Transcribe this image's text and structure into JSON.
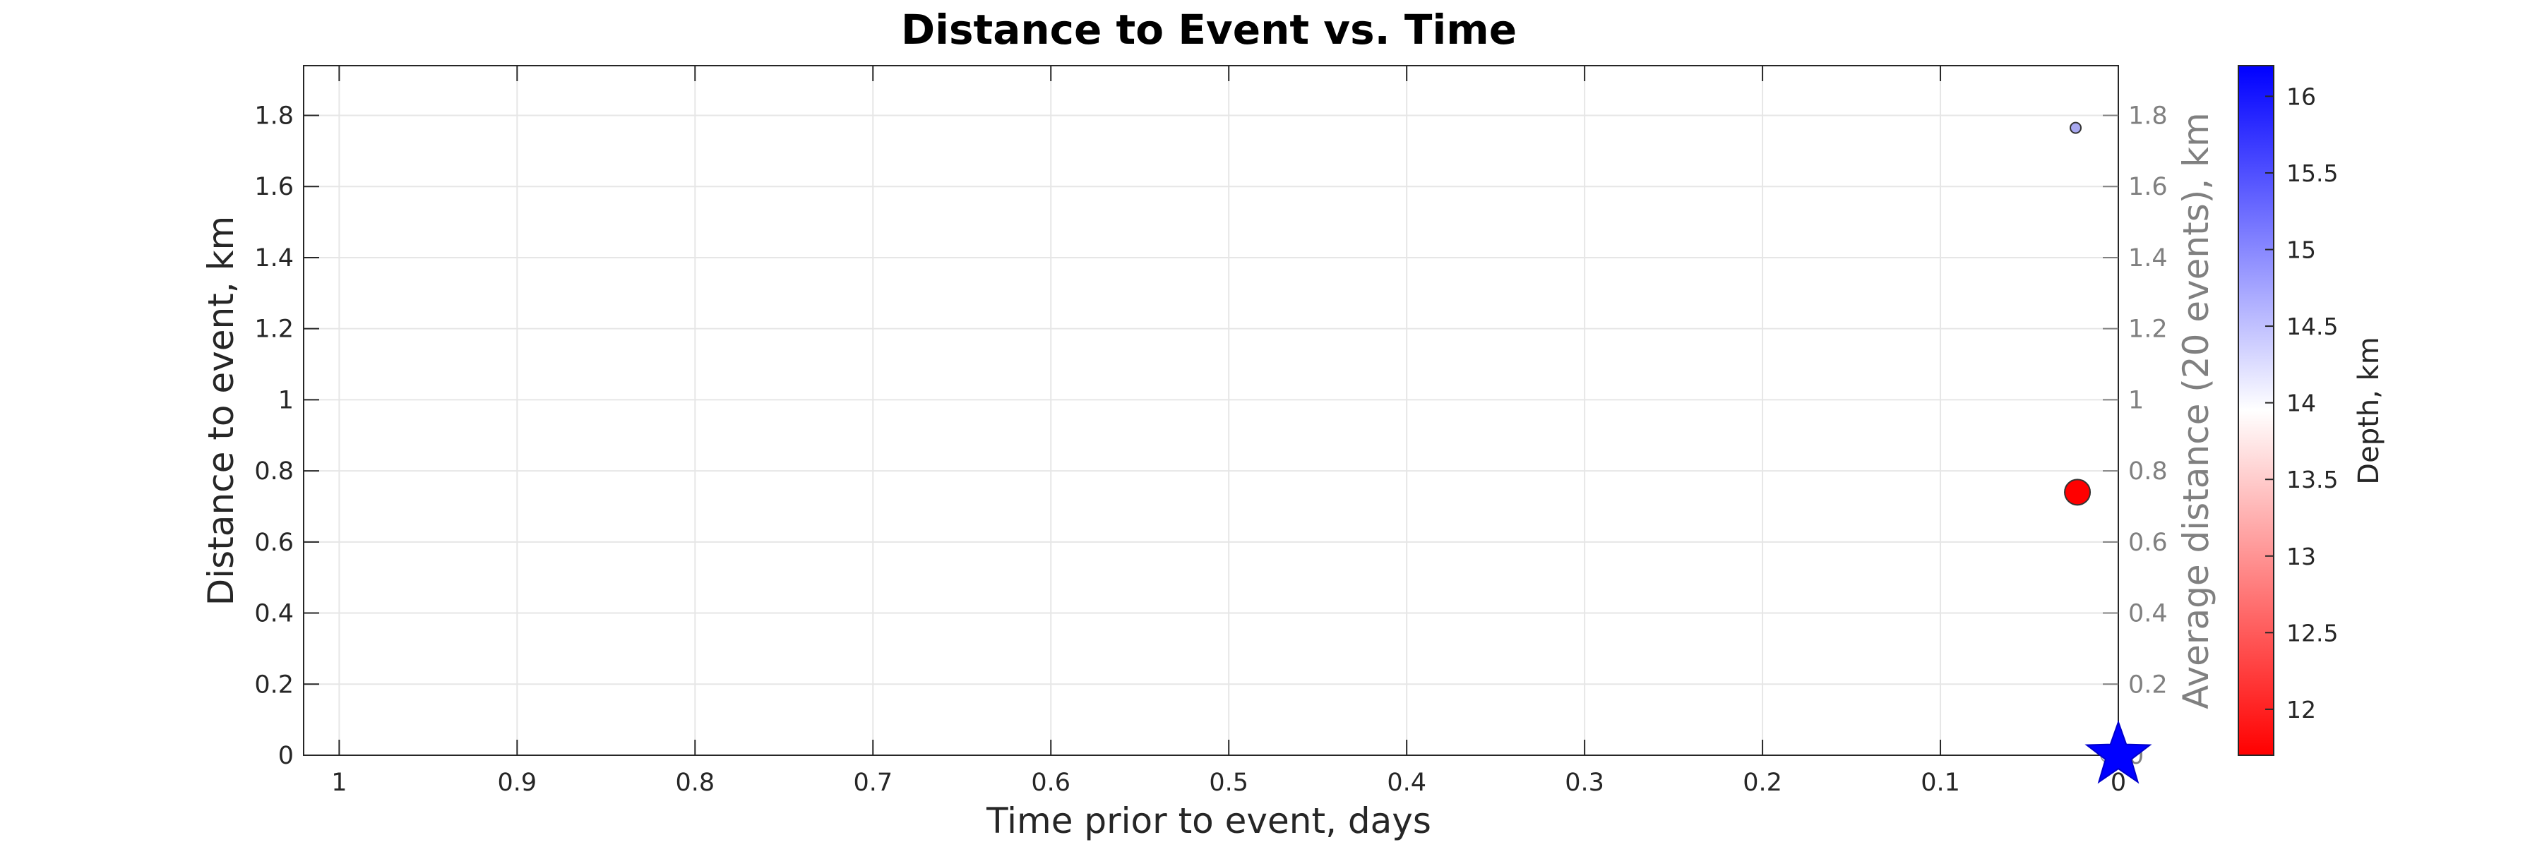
{
  "chart_data": {
    "type": "scatter",
    "title": "Distance to Event vs. Time",
    "xlabel": "Time prior to event, days",
    "ylabel": "Distance to event, km",
    "y2label": "Average distance (20 events), km",
    "x_reversed": true,
    "xlim": [
      0,
      1.02
    ],
    "ylim": [
      0,
      1.94
    ],
    "y2lim": [
      0,
      1.94
    ],
    "xticks": [
      "1",
      "0.9",
      "0.8",
      "0.7",
      "0.6",
      "0.5",
      "0.4",
      "0.3",
      "0.2",
      "0.1",
      "0"
    ],
    "xtick_values": [
      1,
      0.9,
      0.8,
      0.7,
      0.6,
      0.5,
      0.4,
      0.3,
      0.2,
      0.1,
      0
    ],
    "yticks": [
      "0",
      "0.2",
      "0.4",
      "0.6",
      "0.8",
      "1",
      "1.2",
      "1.4",
      "1.6",
      "1.8"
    ],
    "ytick_values": [
      0,
      0.2,
      0.4,
      0.6,
      0.8,
      1,
      1.2,
      1.4,
      1.6,
      1.8
    ],
    "grid": true,
    "points": [
      {
        "x": 0.024,
        "y": 1.765,
        "depth": 14.7,
        "size": "small",
        "color": "#a8a8f0"
      },
      {
        "x": 0.023,
        "y": 0.74,
        "depth": 11.7,
        "size": "large",
        "color": "#ff0000"
      }
    ],
    "average_line_points": [
      {
        "x": 0.009,
        "y": 0.0
      }
    ],
    "main_event": {
      "x": 0.0,
      "y": 0.0,
      "marker": "star",
      "color": "#0000ff"
    },
    "colorbar": {
      "label": "Depth, km",
      "range": [
        11.7,
        16.2
      ],
      "ticks": [
        "12",
        "12.5",
        "13",
        "13.5",
        "14",
        "14.5",
        "15",
        "15.5",
        "16"
      ],
      "tick_values": [
        12,
        12.5,
        13,
        13.5,
        14,
        14.5,
        15,
        15.5,
        16
      ],
      "color_low": "#ff0000",
      "color_mid": "#ffffff",
      "color_high": "#0000ff"
    }
  }
}
